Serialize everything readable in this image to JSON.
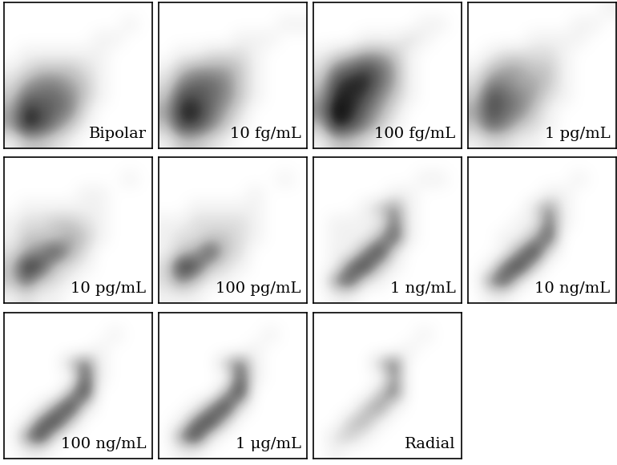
{
  "chart_data": [
    {
      "type": "heatmap",
      "annotation": "Bipolar",
      "tick_labels": false,
      "cells": [
        [
          0,
          0,
          0,
          0,
          0,
          0,
          0,
          0,
          0,
          0
        ],
        [
          0,
          0,
          0,
          0,
          0,
          0,
          0,
          0,
          1,
          0
        ],
        [
          0,
          0,
          0,
          0,
          0,
          0,
          1,
          1,
          0,
          0
        ],
        [
          0,
          1,
          1,
          1,
          1,
          1,
          1,
          0,
          0,
          0
        ],
        [
          1,
          2,
          3,
          3,
          3,
          2,
          1,
          0,
          0,
          0
        ],
        [
          2,
          4,
          5,
          5,
          4,
          3,
          1,
          0,
          0,
          0
        ],
        [
          3,
          6,
          6,
          6,
          5,
          3,
          1,
          0,
          0,
          0
        ],
        [
          4,
          8,
          7,
          6,
          5,
          2,
          0,
          0,
          0,
          0
        ],
        [
          4,
          8,
          7,
          5,
          3,
          1,
          0,
          0,
          0,
          0
        ],
        [
          1,
          3,
          3,
          2,
          1,
          0,
          0,
          0,
          0,
          0
        ]
      ]
    },
    {
      "type": "heatmap",
      "annotation": "10 fg/mL",
      "tick_labels": false,
      "cells": [
        [
          0,
          0,
          0,
          0,
          0,
          0,
          0,
          0,
          0,
          0
        ],
        [
          0,
          0,
          0,
          0,
          0,
          0,
          0,
          0,
          1,
          1
        ],
        [
          0,
          0,
          0,
          0,
          0,
          1,
          1,
          1,
          0,
          0
        ],
        [
          0,
          1,
          1,
          2,
          2,
          2,
          1,
          0,
          0,
          0
        ],
        [
          1,
          3,
          4,
          4,
          4,
          3,
          1,
          0,
          0,
          0
        ],
        [
          2,
          5,
          6,
          6,
          5,
          3,
          1,
          0,
          0,
          0
        ],
        [
          3,
          7,
          7,
          6,
          5,
          3,
          1,
          0,
          0,
          0
        ],
        [
          4,
          8,
          8,
          6,
          4,
          2,
          0,
          0,
          0,
          0
        ],
        [
          3,
          7,
          7,
          5,
          3,
          1,
          0,
          0,
          0,
          0
        ],
        [
          1,
          3,
          3,
          2,
          1,
          0,
          0,
          0,
          0,
          0
        ]
      ]
    },
    {
      "type": "heatmap",
      "annotation": "100 fg/mL",
      "tick_labels": false,
      "cells": [
        [
          0,
          0,
          0,
          0,
          0,
          0,
          0,
          0,
          0,
          0
        ],
        [
          0,
          0,
          0,
          0,
          0,
          0,
          0,
          1,
          1,
          0
        ],
        [
          0,
          0,
          0,
          1,
          1,
          1,
          2,
          1,
          0,
          0
        ],
        [
          1,
          2,
          3,
          4,
          4,
          3,
          1,
          0,
          0,
          0
        ],
        [
          2,
          5,
          6,
          7,
          6,
          4,
          1,
          0,
          0,
          0
        ],
        [
          3,
          7,
          8,
          8,
          6,
          4,
          1,
          0,
          0,
          0
        ],
        [
          4,
          8,
          8,
          7,
          5,
          3,
          1,
          0,
          0,
          0
        ],
        [
          5,
          9,
          8,
          6,
          4,
          2,
          0,
          0,
          0,
          0
        ],
        [
          3,
          8,
          7,
          5,
          3,
          1,
          0,
          0,
          0,
          0
        ],
        [
          1,
          3,
          3,
          2,
          1,
          0,
          0,
          0,
          0,
          0
        ]
      ]
    },
    {
      "type": "heatmap",
      "annotation": "1 pg/mL",
      "tick_labels": false,
      "cells": [
        [
          0,
          0,
          0,
          0,
          0,
          0,
          0,
          0,
          0,
          1
        ],
        [
          0,
          0,
          0,
          0,
          0,
          0,
          0,
          1,
          1,
          0
        ],
        [
          0,
          0,
          0,
          0,
          1,
          1,
          1,
          1,
          0,
          0
        ],
        [
          0,
          1,
          2,
          2,
          2,
          2,
          1,
          0,
          0,
          0
        ],
        [
          1,
          3,
          4,
          4,
          3,
          3,
          1,
          0,
          0,
          0
        ],
        [
          2,
          5,
          5,
          4,
          4,
          3,
          1,
          0,
          0,
          0
        ],
        [
          3,
          7,
          6,
          5,
          4,
          2,
          1,
          0,
          0,
          0
        ],
        [
          4,
          7,
          6,
          5,
          3,
          1,
          0,
          0,
          0,
          0
        ],
        [
          3,
          6,
          5,
          3,
          2,
          1,
          0,
          0,
          0,
          0
        ],
        [
          1,
          2,
          2,
          1,
          1,
          0,
          0,
          0,
          0,
          0
        ]
      ]
    },
    {
      "type": "heatmap",
      "annotation": "10 pg/mL",
      "tick_labels": false,
      "cells": [
        [
          0,
          0,
          0,
          0,
          0,
          0,
          0,
          0,
          0,
          0
        ],
        [
          0,
          0,
          0,
          0,
          0,
          0,
          0,
          0,
          1,
          0
        ],
        [
          0,
          0,
          0,
          0,
          0,
          1,
          1,
          0,
          0,
          0
        ],
        [
          0,
          1,
          1,
          1,
          1,
          1,
          1,
          0,
          0,
          0
        ],
        [
          1,
          2,
          2,
          3,
          3,
          2,
          1,
          0,
          0,
          0
        ],
        [
          1,
          3,
          3,
          3,
          4,
          3,
          1,
          0,
          0,
          0
        ],
        [
          2,
          4,
          5,
          7,
          4,
          2,
          0,
          0,
          0,
          0
        ],
        [
          3,
          8,
          7,
          3,
          2,
          1,
          0,
          0,
          0,
          0
        ],
        [
          3,
          6,
          3,
          2,
          1,
          0,
          0,
          0,
          0,
          0
        ],
        [
          1,
          2,
          1,
          1,
          0,
          0,
          0,
          0,
          0,
          0
        ]
      ]
    },
    {
      "type": "heatmap",
      "annotation": "100 pg/mL",
      "tick_labels": false,
      "cells": [
        [
          0,
          0,
          0,
          0,
          0,
          0,
          0,
          0,
          0,
          0
        ],
        [
          0,
          0,
          0,
          0,
          0,
          0,
          0,
          0,
          1,
          0
        ],
        [
          0,
          0,
          0,
          0,
          0,
          0,
          1,
          0,
          0,
          0
        ],
        [
          0,
          0,
          1,
          1,
          1,
          1,
          1,
          0,
          0,
          0
        ],
        [
          1,
          1,
          2,
          2,
          2,
          2,
          1,
          0,
          0,
          0
        ],
        [
          1,
          2,
          2,
          3,
          3,
          2,
          1,
          0,
          0,
          0
        ],
        [
          1,
          3,
          4,
          7,
          3,
          2,
          0,
          0,
          0,
          0
        ],
        [
          2,
          8,
          7,
          3,
          2,
          1,
          0,
          0,
          0,
          0
        ],
        [
          2,
          5,
          3,
          1,
          1,
          0,
          0,
          0,
          0,
          0
        ],
        [
          1,
          1,
          1,
          0,
          0,
          0,
          0,
          0,
          0,
          0
        ]
      ]
    },
    {
      "type": "heatmap",
      "annotation": "1 ng/mL",
      "tick_labels": false,
      "cells": [
        [
          0,
          0,
          0,
          0,
          0,
          0,
          0,
          0,
          0,
          0
        ],
        [
          0,
          0,
          0,
          0,
          0,
          0,
          0,
          1,
          1,
          0
        ],
        [
          0,
          0,
          0,
          0,
          0,
          1,
          1,
          0,
          0,
          0
        ],
        [
          0,
          0,
          0,
          1,
          3,
          5,
          1,
          0,
          0,
          0
        ],
        [
          0,
          1,
          1,
          1,
          1,
          6,
          1,
          0,
          0,
          0
        ],
        [
          0,
          1,
          1,
          1,
          4,
          7,
          1,
          0,
          0,
          0
        ],
        [
          0,
          1,
          1,
          5,
          8,
          2,
          0,
          0,
          0,
          0
        ],
        [
          0,
          1,
          6,
          8,
          3,
          1,
          0,
          0,
          0,
          0
        ],
        [
          0,
          5,
          7,
          2,
          1,
          0,
          0,
          0,
          0,
          0
        ],
        [
          0,
          1,
          1,
          0,
          0,
          0,
          0,
          0,
          0,
          0
        ]
      ]
    },
    {
      "type": "heatmap",
      "annotation": "10 ng/mL",
      "tick_labels": false,
      "cells": [
        [
          0,
          0,
          0,
          0,
          0,
          0,
          0,
          0,
          0,
          0
        ],
        [
          0,
          0,
          0,
          0,
          0,
          0,
          0,
          1,
          0,
          0
        ],
        [
          0,
          0,
          0,
          0,
          0,
          1,
          1,
          0,
          0,
          0
        ],
        [
          0,
          0,
          0,
          0,
          2,
          5,
          1,
          0,
          0,
          0
        ],
        [
          0,
          0,
          0,
          1,
          1,
          6,
          1,
          0,
          0,
          0
        ],
        [
          0,
          0,
          1,
          1,
          4,
          7,
          0,
          0,
          0,
          0
        ],
        [
          0,
          0,
          1,
          5,
          8,
          2,
          0,
          0,
          0,
          0
        ],
        [
          0,
          1,
          6,
          8,
          3,
          0,
          0,
          0,
          0,
          0
        ],
        [
          0,
          5,
          7,
          2,
          0,
          0,
          0,
          0,
          0,
          0
        ],
        [
          0,
          1,
          1,
          0,
          0,
          0,
          0,
          0,
          0,
          0
        ]
      ]
    },
    {
      "type": "heatmap",
      "annotation": "100 ng/mL",
      "tick_labels": false,
      "cells": [
        [
          0,
          0,
          0,
          0,
          0,
          0,
          0,
          0,
          0,
          0
        ],
        [
          0,
          0,
          0,
          0,
          0,
          0,
          0,
          1,
          0,
          0
        ],
        [
          0,
          0,
          0,
          0,
          0,
          0,
          1,
          0,
          0,
          0
        ],
        [
          0,
          0,
          0,
          0,
          3,
          6,
          1,
          0,
          0,
          0
        ],
        [
          0,
          0,
          0,
          0,
          0,
          7,
          1,
          0,
          0,
          0
        ],
        [
          0,
          0,
          0,
          0,
          4,
          8,
          0,
          0,
          0,
          0
        ],
        [
          0,
          0,
          1,
          5,
          8,
          2,
          0,
          0,
          0,
          0
        ],
        [
          0,
          1,
          6,
          8,
          3,
          0,
          0,
          0,
          0,
          0
        ],
        [
          0,
          5,
          8,
          2,
          0,
          0,
          0,
          0,
          0,
          0
        ],
        [
          0,
          1,
          1,
          0,
          0,
          0,
          0,
          0,
          0,
          0
        ]
      ]
    },
    {
      "type": "heatmap",
      "annotation": "1 μg/mL",
      "tick_labels": false,
      "cells": [
        [
          0,
          0,
          0,
          0,
          0,
          0,
          0,
          0,
          0,
          0
        ],
        [
          0,
          0,
          0,
          0,
          0,
          0,
          0,
          1,
          0,
          0
        ],
        [
          0,
          0,
          0,
          0,
          0,
          0,
          1,
          0,
          0,
          0
        ],
        [
          0,
          0,
          0,
          0,
          3,
          6,
          1,
          0,
          0,
          0
        ],
        [
          0,
          0,
          0,
          0,
          0,
          7,
          1,
          0,
          0,
          0
        ],
        [
          0,
          0,
          0,
          0,
          4,
          8,
          0,
          0,
          0,
          0
        ],
        [
          0,
          0,
          1,
          5,
          8,
          2,
          0,
          0,
          0,
          0
        ],
        [
          0,
          1,
          6,
          8,
          3,
          0,
          0,
          0,
          0,
          0
        ],
        [
          0,
          5,
          8,
          2,
          0,
          0,
          0,
          0,
          0,
          0
        ],
        [
          0,
          1,
          1,
          0,
          0,
          0,
          0,
          0,
          0,
          0
        ]
      ]
    },
    {
      "type": "heatmap",
      "annotation": "Radial",
      "tick_labels": false,
      "cells": [
        [
          0,
          0,
          0,
          0,
          0,
          0,
          0,
          0,
          0,
          0
        ],
        [
          0,
          0,
          0,
          0,
          0,
          0,
          0,
          1,
          0,
          0
        ],
        [
          0,
          0,
          0,
          0,
          0,
          0,
          1,
          0,
          0,
          0
        ],
        [
          0,
          0,
          0,
          0,
          3,
          6,
          0,
          0,
          0,
          0
        ],
        [
          0,
          0,
          0,
          0,
          0,
          5,
          0,
          0,
          0,
          0
        ],
        [
          0,
          0,
          0,
          0,
          3,
          6,
          0,
          0,
          0,
          0
        ],
        [
          0,
          0,
          0,
          3,
          5,
          1,
          0,
          0,
          0,
          0
        ],
        [
          0,
          0,
          3,
          4,
          1,
          0,
          0,
          0,
          0,
          0
        ],
        [
          0,
          2,
          3,
          1,
          0,
          0,
          0,
          0,
          0,
          0
        ],
        [
          0,
          1,
          0,
          0,
          0,
          0,
          0,
          0,
          0,
          0
        ]
      ]
    }
  ]
}
